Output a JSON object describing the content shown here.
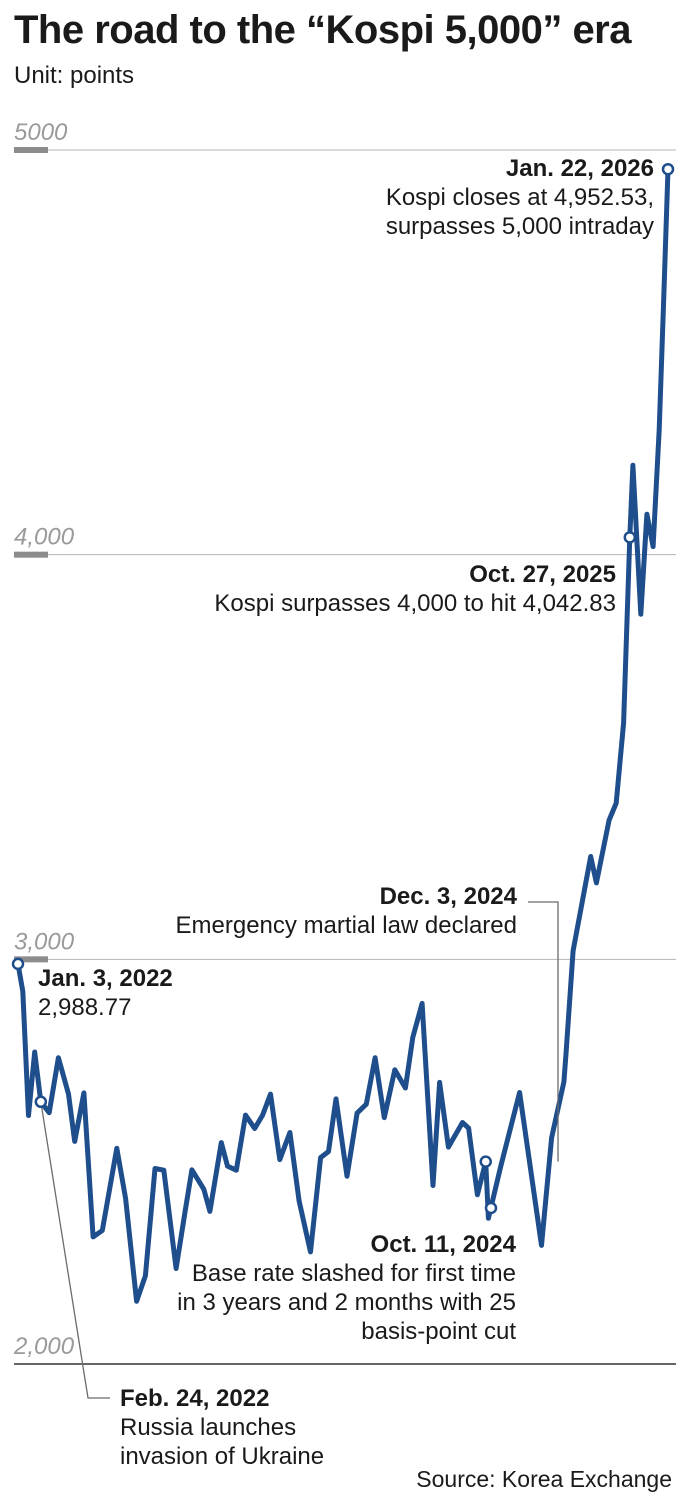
{
  "title": "The road to the “Kospi 5,000” era",
  "subtitle": "Unit: points",
  "source": "Source: Korea Exchange",
  "colors": {
    "line": "#1f4e8c",
    "grid": "#b5b5b5",
    "baseline": "#333333",
    "tick_marker": "#8c8c8c"
  },
  "chart_data": {
    "type": "line",
    "x_range": [
      "2022-01-03",
      "2026-01-22"
    ],
    "ylim": [
      2000,
      5000
    ],
    "y_ticks": [
      {
        "value": 5000,
        "label": "5000"
      },
      {
        "value": 4000,
        "label": "4,000"
      },
      {
        "value": 3000,
        "label": "3,000"
      },
      {
        "value": 2000,
        "label": "2,000"
      }
    ],
    "series": [
      {
        "points": [
          [
            "2022-01-03",
            2988.77
          ],
          [
            "2022-01-14",
            2921
          ],
          [
            "2022-01-27",
            2614
          ],
          [
            "2022-02-10",
            2771
          ],
          [
            "2022-02-24",
            2648
          ],
          [
            "2022-03-15",
            2621
          ],
          [
            "2022-04-05",
            2757
          ],
          [
            "2022-04-28",
            2667
          ],
          [
            "2022-05-12",
            2550
          ],
          [
            "2022-06-02",
            2670
          ],
          [
            "2022-06-23",
            2314
          ],
          [
            "2022-07-14",
            2330
          ],
          [
            "2022-08-16",
            2533
          ],
          [
            "2022-09-05",
            2409
          ],
          [
            "2022-09-30",
            2155
          ],
          [
            "2022-10-20",
            2218
          ],
          [
            "2022-11-11",
            2483
          ],
          [
            "2022-12-01",
            2479
          ],
          [
            "2022-12-29",
            2236
          ],
          [
            "2023-01-19",
            2380
          ],
          [
            "2023-02-03",
            2480
          ],
          [
            "2023-03-02",
            2432
          ],
          [
            "2023-03-16",
            2377
          ],
          [
            "2023-04-11",
            2547
          ],
          [
            "2023-04-25",
            2489
          ],
          [
            "2023-05-15",
            2479
          ],
          [
            "2023-06-05",
            2615
          ],
          [
            "2023-06-26",
            2582
          ],
          [
            "2023-07-14",
            2615
          ],
          [
            "2023-08-01",
            2667
          ],
          [
            "2023-08-22",
            2505
          ],
          [
            "2023-09-14",
            2572
          ],
          [
            "2023-10-05",
            2403
          ],
          [
            "2023-10-31",
            2277
          ],
          [
            "2023-11-23",
            2510
          ],
          [
            "2023-12-11",
            2525
          ],
          [
            "2023-12-28",
            2655
          ],
          [
            "2024-01-22",
            2464
          ],
          [
            "2024-02-14",
            2620
          ],
          [
            "2024-03-06",
            2642
          ],
          [
            "2024-03-26",
            2757
          ],
          [
            "2024-04-16",
            2609
          ],
          [
            "2024-05-10",
            2727
          ],
          [
            "2024-06-03",
            2682
          ],
          [
            "2024-06-20",
            2807
          ],
          [
            "2024-07-11",
            2891
          ],
          [
            "2024-08-05",
            2441
          ],
          [
            "2024-08-20",
            2696
          ],
          [
            "2024-09-09",
            2536
          ],
          [
            "2024-10-11",
            2596.91
          ],
          [
            "2024-10-25",
            2583
          ],
          [
            "2024-11-14",
            2418
          ],
          [
            "2024-12-03",
            2500.1
          ],
          [
            "2024-12-09",
            2360
          ],
          [
            "2025-01-06",
            2488
          ],
          [
            "2025-02-18",
            2671
          ],
          [
            "2025-04-09",
            2293
          ],
          [
            "2025-05-02",
            2559
          ],
          [
            "2025-05-30",
            2697
          ],
          [
            "2025-06-04",
            2770
          ],
          [
            "2025-06-20",
            3021
          ],
          [
            "2025-07-30",
            3254
          ],
          [
            "2025-08-12",
            3189
          ],
          [
            "2025-09-10",
            3344
          ],
          [
            "2025-09-26",
            3386
          ],
          [
            "2025-10-13",
            3584
          ],
          [
            "2025-10-27",
            4042.83
          ],
          [
            "2025-11-03",
            4221
          ],
          [
            "2025-11-21",
            3853
          ],
          [
            "2025-12-05",
            4100
          ],
          [
            "2025-12-19",
            4020
          ],
          [
            "2026-01-02",
            4309
          ],
          [
            "2026-01-12",
            4624
          ],
          [
            "2026-01-22",
            4952.53
          ]
        ]
      }
    ],
    "annotations": [
      {
        "date_label": "Jan. 22, 2026",
        "lines": [
          "Kospi closes at 4,952.53,",
          "surpasses 5,000 intraday"
        ]
      },
      {
        "date_label": "Oct. 27, 2025",
        "lines": [
          "Kospi surpasses 4,000 to hit 4,042.83"
        ]
      },
      {
        "date_label": "Dec. 3, 2024",
        "lines": [
          "Emergency martial law declared"
        ]
      },
      {
        "date_label": "Jan. 3, 2022",
        "lines": [
          "2,988.77"
        ]
      },
      {
        "date_label": "Oct. 11, 2024",
        "lines": [
          "Base rate slashed for first time",
          "in 3 years and 2 months with 25",
          "basis-point cut"
        ]
      },
      {
        "date_label": "Feb. 24, 2022",
        "lines": [
          "Russia launches",
          "invasion of Ukraine"
        ]
      }
    ]
  }
}
